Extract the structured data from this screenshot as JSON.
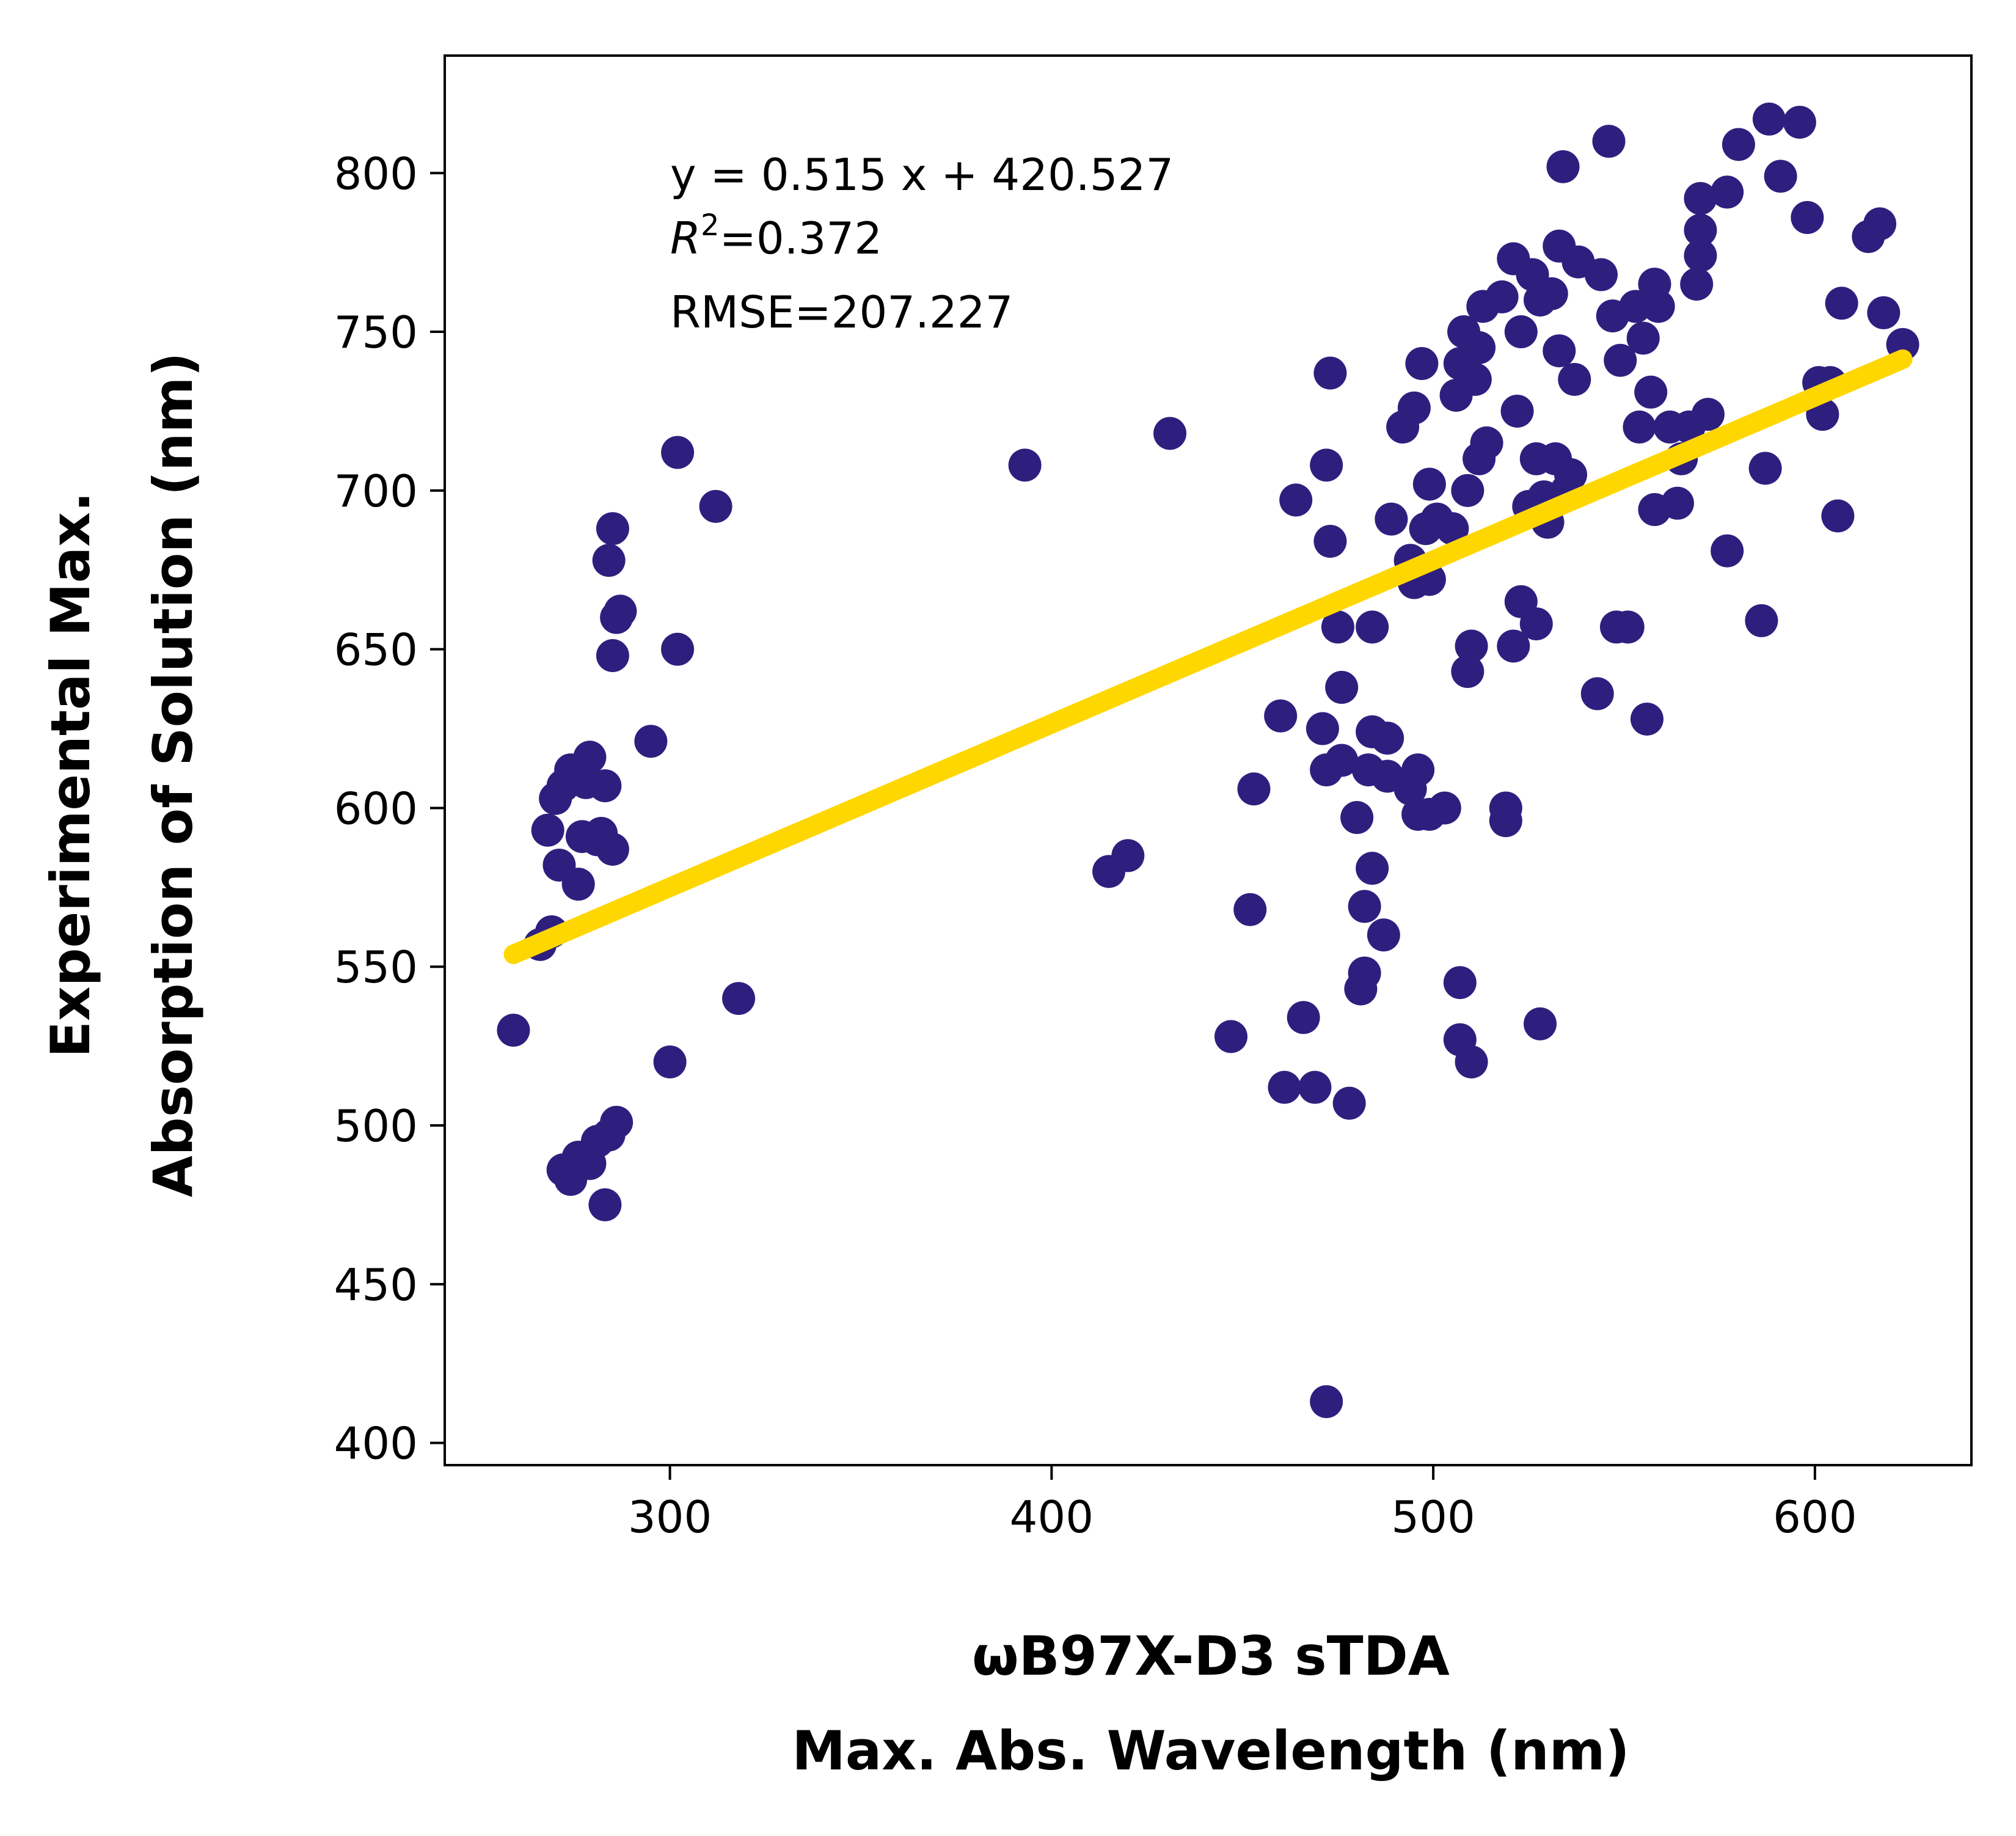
{
  "chart_data": {
    "type": "scatter",
    "xlabel": [
      "ωB97X-D3 sTDA",
      "Max. Abs. Wavelength (nm)"
    ],
    "ylabel": [
      "Experimental Max.",
      "Absorption of Solution (nm)"
    ],
    "xlim": [
      241,
      641
    ],
    "ylim": [
      393,
      837
    ],
    "xticks": [
      300,
      400,
      500,
      600
    ],
    "yticks": [
      400,
      450,
      500,
      550,
      600,
      650,
      700,
      750,
      800
    ],
    "grid": false,
    "annotation": {
      "equation": "y = 0.515 x + 420.527",
      "r2_label": "R",
      "r2_value": "=0.372",
      "rmse": "RMSE=207.227"
    },
    "fit_line": {
      "slope": 0.515,
      "intercept": 420.527,
      "x_range": [
        259,
        623
      ]
    },
    "colors": {
      "points": "#2e1f7f",
      "fit": "#ffd700",
      "axes": "#000000"
    },
    "series": [
      {
        "points": [
          [
            259,
            530
          ],
          [
            266,
            557
          ],
          [
            269,
            561
          ],
          [
            268,
            593
          ],
          [
            270,
            603
          ],
          [
            272,
            607
          ],
          [
            271,
            582
          ],
          [
            274,
            612
          ],
          [
            276,
            576
          ],
          [
            278,
            608
          ],
          [
            277,
            591
          ],
          [
            279,
            616
          ],
          [
            281,
            590
          ],
          [
            282,
            592
          ],
          [
            283,
            607
          ],
          [
            284,
            678
          ],
          [
            285,
            587
          ],
          [
            285,
            688
          ],
          [
            285,
            648
          ],
          [
            286,
            660
          ],
          [
            287,
            662
          ],
          [
            272,
            486
          ],
          [
            274,
            483
          ],
          [
            276,
            490
          ],
          [
            279,
            488
          ],
          [
            281,
            495
          ],
          [
            284,
            497
          ],
          [
            286,
            501
          ],
          [
            283,
            475
          ],
          [
            295,
            621
          ],
          [
            300,
            520
          ],
          [
            302,
            712
          ],
          [
            302,
            650
          ],
          [
            312,
            695
          ],
          [
            318,
            540
          ],
          [
            393,
            708
          ],
          [
            415,
            580
          ],
          [
            420,
            585
          ],
          [
            431,
            718
          ],
          [
            447,
            528
          ],
          [
            452,
            568
          ],
          [
            453,
            606
          ],
          [
            460,
            629
          ],
          [
            461,
            512
          ],
          [
            464,
            697
          ],
          [
            466,
            534
          ],
          [
            469,
            512
          ],
          [
            471,
            625
          ],
          [
            472,
            708
          ],
          [
            472,
            612
          ],
          [
            473,
            737
          ],
          [
            473,
            684
          ],
          [
            475,
            657
          ],
          [
            476,
            615
          ],
          [
            476,
            638
          ],
          [
            472,
            413
          ],
          [
            478,
            507
          ],
          [
            480,
            597
          ],
          [
            481,
            543
          ],
          [
            482,
            548
          ],
          [
            482,
            569
          ],
          [
            483,
            612
          ],
          [
            484,
            581
          ],
          [
            484,
            657
          ],
          [
            484,
            624
          ],
          [
            487,
            560
          ],
          [
            488,
            622
          ],
          [
            488,
            610
          ],
          [
            489,
            691
          ],
          [
            492,
            720
          ],
          [
            494,
            606
          ],
          [
            494,
            678
          ],
          [
            495,
            671
          ],
          [
            495,
            726
          ],
          [
            496,
            598
          ],
          [
            496,
            612
          ],
          [
            497,
            740
          ],
          [
            498,
            688
          ],
          [
            499,
            702
          ],
          [
            499,
            598
          ],
          [
            499,
            672
          ],
          [
            501,
            691
          ],
          [
            503,
            600
          ],
          [
            505,
            688
          ],
          [
            506,
            730
          ],
          [
            507,
            545
          ],
          [
            507,
            527
          ],
          [
            507,
            740
          ],
          [
            508,
            750
          ],
          [
            509,
            643
          ],
          [
            509,
            700
          ],
          [
            510,
            651
          ],
          [
            510,
            520
          ],
          [
            511,
            735
          ],
          [
            512,
            745
          ],
          [
            512,
            710
          ],
          [
            513,
            758
          ],
          [
            514,
            715
          ],
          [
            518,
            761
          ],
          [
            519,
            600
          ],
          [
            519,
            596
          ],
          [
            521,
            651
          ],
          [
            521,
            773
          ],
          [
            522,
            725
          ],
          [
            523,
            665
          ],
          [
            523,
            750
          ],
          [
            525,
            695
          ],
          [
            526,
            768
          ],
          [
            527,
            710
          ],
          [
            527,
            658
          ],
          [
            528,
            532
          ],
          [
            528,
            760
          ],
          [
            529,
            698
          ],
          [
            530,
            690
          ],
          [
            531,
            762
          ],
          [
            532,
            710
          ],
          [
            533,
            744
          ],
          [
            533,
            777
          ],
          [
            534,
            802
          ],
          [
            535,
            700
          ],
          [
            536,
            705
          ],
          [
            537,
            735
          ],
          [
            538,
            772
          ],
          [
            543,
            636
          ],
          [
            544,
            768
          ],
          [
            546,
            810
          ],
          [
            547,
            755
          ],
          [
            548,
            657
          ],
          [
            549,
            741
          ],
          [
            551,
            657
          ],
          [
            553,
            758
          ],
          [
            554,
            720
          ],
          [
            555,
            748
          ],
          [
            556,
            628
          ],
          [
            557,
            731
          ],
          [
            558,
            694
          ],
          [
            558,
            765
          ],
          [
            559,
            758
          ],
          [
            562,
            720
          ],
          [
            564,
            696
          ],
          [
            565,
            710
          ],
          [
            567,
            720
          ],
          [
            569,
            765
          ],
          [
            570,
            792
          ],
          [
            570,
            774
          ],
          [
            570,
            782
          ],
          [
            572,
            724
          ],
          [
            577,
            681
          ],
          [
            577,
            794
          ],
          [
            580,
            809
          ],
          [
            586,
            659
          ],
          [
            587,
            707
          ],
          [
            588,
            817
          ],
          [
            591,
            799
          ],
          [
            596,
            816
          ],
          [
            598,
            786
          ],
          [
            601,
            734
          ],
          [
            602,
            724
          ],
          [
            604,
            734
          ],
          [
            606,
            692
          ],
          [
            607,
            759
          ],
          [
            614,
            780
          ],
          [
            617,
            784
          ],
          [
            618,
            756
          ],
          [
            623,
            746
          ]
        ]
      }
    ]
  }
}
